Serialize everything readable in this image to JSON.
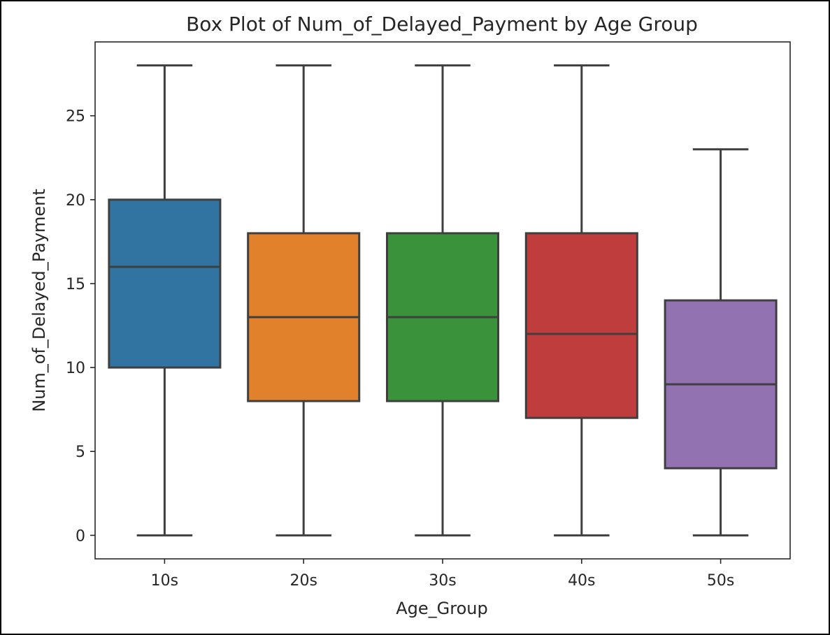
{
  "chart_data": {
    "type": "box",
    "title": "Box Plot of Num_of_Delayed_Payment by Age Group",
    "xlabel": "Age_Group",
    "ylabel": "Num_of_Delayed_Payment",
    "ylim": [
      -1.4,
      29.4
    ],
    "yticks": [
      0,
      5,
      10,
      15,
      20,
      25
    ],
    "grid": false,
    "categories": [
      "10s",
      "20s",
      "30s",
      "40s",
      "50s"
    ],
    "boxes": [
      {
        "category": "10s",
        "min": 0,
        "q1": 10,
        "median": 16,
        "q3": 20,
        "max": 28,
        "color": "#3274a1"
      },
      {
        "category": "20s",
        "min": 0,
        "q1": 8,
        "median": 13,
        "q3": 18,
        "max": 28,
        "color": "#e1812c"
      },
      {
        "category": "30s",
        "min": 0,
        "q1": 8,
        "median": 13,
        "q3": 18,
        "max": 28,
        "color": "#3a923a"
      },
      {
        "category": "40s",
        "min": 0,
        "q1": 7,
        "median": 12,
        "q3": 18,
        "max": 28,
        "color": "#c03d3e"
      },
      {
        "category": "50s",
        "min": 0,
        "q1": 4,
        "median": 9,
        "q3": 14,
        "max": 23,
        "color": "#9372b2"
      }
    ]
  }
}
